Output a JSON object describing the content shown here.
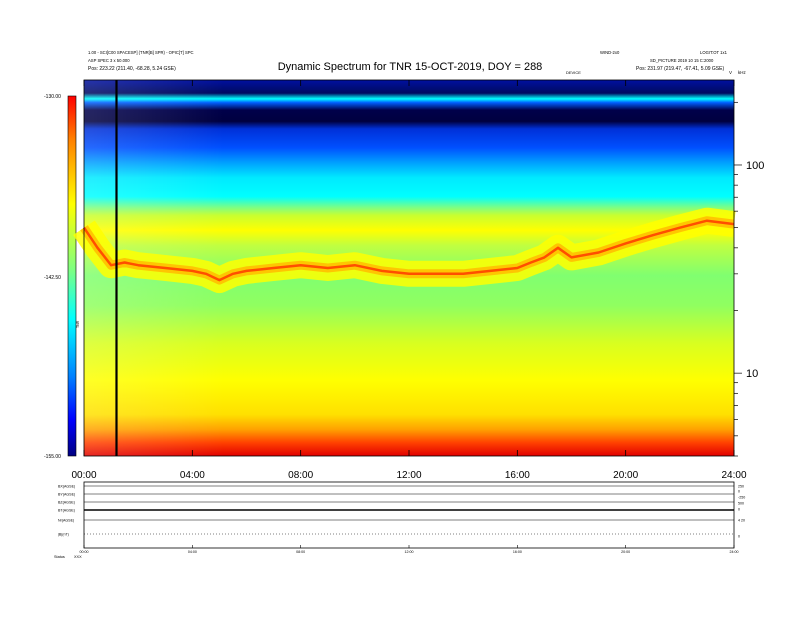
{
  "header": {
    "title": "Dynamic Spectrum for TNR 15-OCT-2019, DOY = 288",
    "left_line1": "1.00 - SCI[C00 SPACESP] (TNR[B] SPR) - OPIC[T] SPC",
    "left_line2": "ASP SPEC 3 x 50.000",
    "left_line3": "Pos:   223.22 (211.40, -68.28, 5.24 GSE)",
    "right_top_a": "WIND-2x0",
    "right_top_b": "LOGIT:OT 1x1",
    "right_line2": "SD_PICTURE 2019 10 15 C:2000",
    "right_line3": "Pos:   231.97 (219.47, -67.41, 5.09 GSE)",
    "small_right_label": "DEVICE",
    "corner_v": "V",
    "corner_khz": "kHz"
  },
  "colorbar": {
    "ticks": [
      "-130.00",
      "-142.50",
      "-155.00"
    ],
    "unit_label": "TNR",
    "colors": [
      "#000080",
      "#0000ff",
      "#0080ff",
      "#00ffff",
      "#80ff80",
      "#c0ff40",
      "#ffff00",
      "#ffc000",
      "#ff8000",
      "#ff2000",
      "#c00000"
    ]
  },
  "chart_data": {
    "type": "heatmap",
    "title": "Dynamic Spectrum for TNR 15-OCT-2019, DOY = 288",
    "xlabel": "",
    "ylabel": "kHz",
    "x_ticks": [
      "00:00",
      "04:00",
      "08:00",
      "12:00",
      "16:00",
      "20:00",
      "24:00"
    ],
    "y_ticks": [
      "100",
      "10"
    ],
    "y_scale": "log",
    "y_range_khz": [
      4,
      256
    ],
    "color_range": [
      -155.0,
      -130.0
    ],
    "marker_time_hours": 1.2,
    "plasma_line": {
      "hours": [
        0,
        0.5,
        1,
        1.5,
        2,
        3,
        4,
        4.5,
        5,
        5.5,
        6,
        7,
        8,
        9,
        10,
        11,
        12,
        13,
        14,
        15,
        16,
        16.5,
        17,
        17.5,
        18,
        19,
        20,
        21,
        22,
        23,
        24
      ],
      "khz": [
        50,
        40,
        33,
        34,
        33,
        32,
        31,
        30,
        28,
        30,
        31,
        32,
        33,
        32,
        33,
        31,
        30,
        30,
        30,
        31,
        32,
        34,
        36,
        40,
        36,
        38,
        42,
        46,
        50,
        54,
        52
      ]
    }
  },
  "panel": {
    "row_labels": [
      "BX(AGSE)",
      "BY(AGSE)",
      "BZ(AGSE)",
      "BT(AGSE)",
      "Nr(AGSE)",
      "|B|(nT)"
    ],
    "right_ticks": [
      "250",
      "0",
      "-250",
      "500",
      "0",
      "4 20",
      "0"
    ],
    "x_ticks": [
      "00:00",
      "04:00",
      "08:00",
      "12:00",
      "16:00",
      "20:00",
      "24:00"
    ],
    "footer_label": "Status",
    "footer_value": "XXX"
  }
}
